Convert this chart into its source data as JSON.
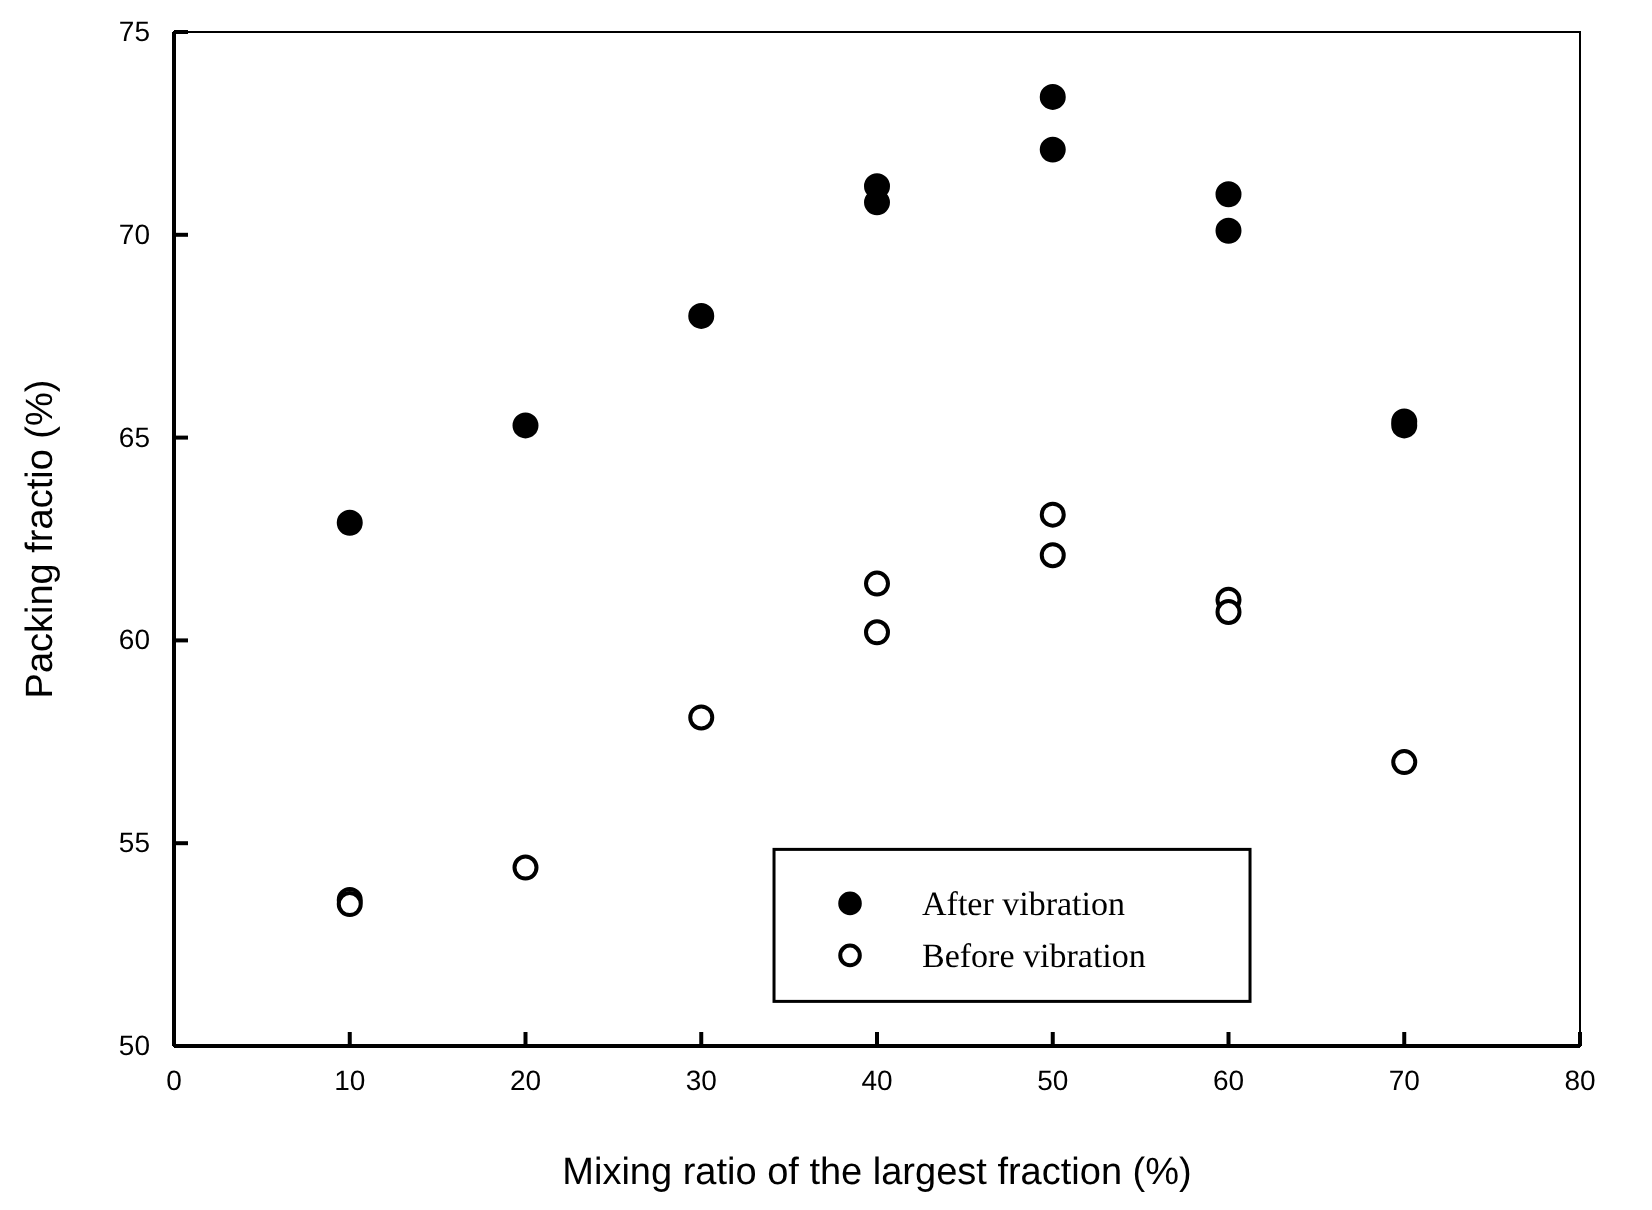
{
  "chart_data": {
    "type": "scatter",
    "xlabel": "Mixing ratio of the largest fraction (%)",
    "ylabel": "Packing fractio (%)",
    "xlim": [
      0,
      80
    ],
    "xticks": [
      0,
      10,
      20,
      30,
      40,
      50,
      60,
      70,
      80
    ],
    "ylim": [
      50,
      75
    ],
    "yticks": [
      50,
      55,
      60,
      65,
      70,
      75
    ],
    "grid": false,
    "legend": "bottom right",
    "marker": "circle",
    "series": [
      {
        "name": "After vibration",
        "color": "#000000",
        "x": [
          10,
          20,
          30,
          40,
          40,
          50,
          50,
          60,
          60,
          70,
          70
        ],
        "values": [
          62.9,
          65.3,
          68.0,
          71.2,
          70.8,
          73.4,
          72.1,
          71.0,
          70.1,
          65.4,
          65.3
        ]
      },
      {
        "name": "Before vibration",
        "color": "#ffffff",
        "x": [
          10,
          10,
          20,
          30,
          40,
          40,
          50,
          50,
          60,
          60,
          70
        ],
        "values": [
          53.6,
          53.5,
          54.4,
          58.1,
          61.4,
          60.2,
          63.1,
          62.1,
          61.0,
          60.7,
          57.0
        ]
      }
    ]
  }
}
